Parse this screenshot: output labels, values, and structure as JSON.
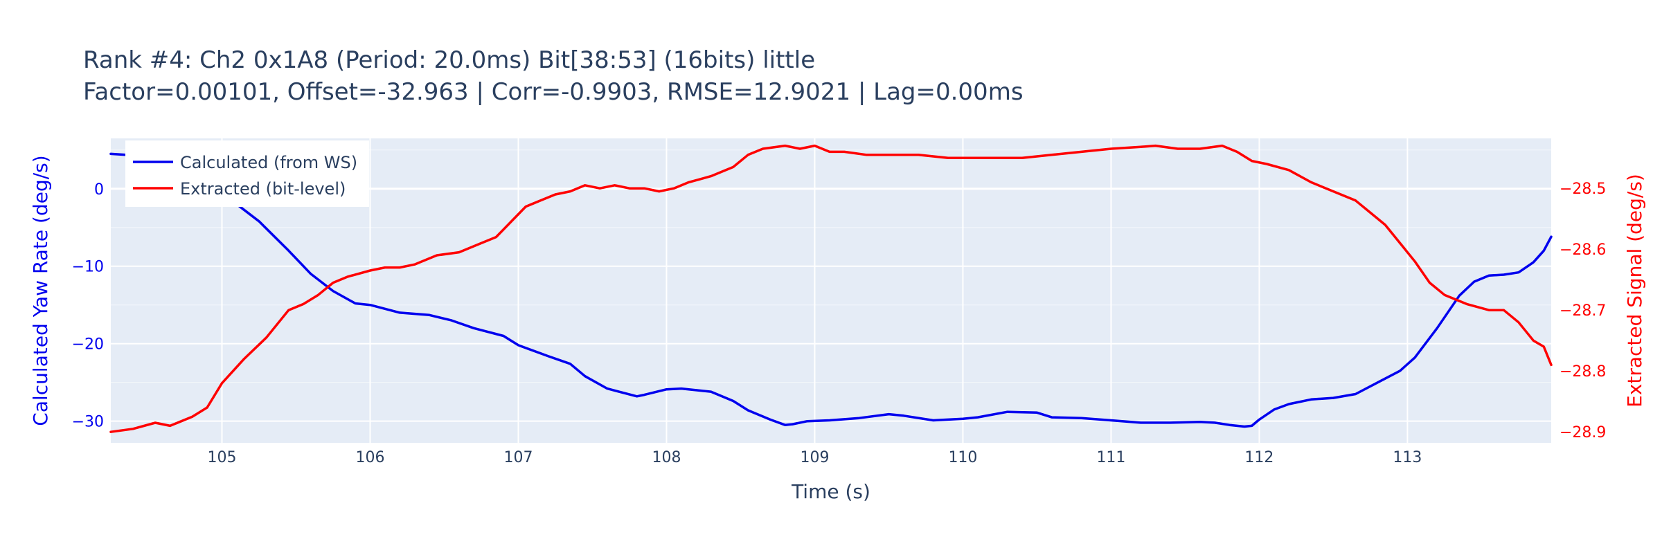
{
  "chart_data": {
    "type": "line",
    "title": "Rank #4: Ch2 0x1A8 (Period: 20.0ms) Bit[38:53] (16bits) little",
    "subtitle": "Factor=0.00101, Offset=-32.963 | Corr=-0.9903, RMSE=12.9021 | Lag=0.00ms",
    "xlabel": "Time (s)",
    "ylabel_left": "Calculated Yaw Rate (deg/s)",
    "ylabel_right": "Extracted Signal (deg/s)",
    "xlim": [
      104.25,
      113.97
    ],
    "ylim_left": [
      -32.8,
      6.5
    ],
    "ylim_right": [
      -28.918,
      -28.418
    ],
    "x_ticks": [
      105,
      106,
      107,
      108,
      109,
      110,
      111,
      112,
      113
    ],
    "x_tick_labels": [
      "105",
      "106",
      "107",
      "108",
      "109",
      "110",
      "111",
      "112",
      "113"
    ],
    "y_left_ticks": [
      0,
      -10,
      -20,
      -30
    ],
    "y_left_tick_labels": [
      "0",
      "−10",
      "−20",
      "−30"
    ],
    "y_right_ticks": [
      -28.5,
      -28.6,
      -28.7,
      -28.8,
      -28.9
    ],
    "y_right_tick_labels": [
      "−28.5",
      "−28.6",
      "−28.7",
      "−28.8",
      "−28.9"
    ],
    "grid": true,
    "legend_position": "top-left",
    "colors": {
      "calculated": "#0000ee",
      "extracted": "#ff0000",
      "plot_bg": "#e5ecf6",
      "grid": "#ffffff",
      "text": "#2a3f5f"
    },
    "series": [
      {
        "name": "Calculated (from WS)",
        "axis": "left",
        "x": [
          104.25,
          104.5,
          104.75,
          104.95,
          105.1,
          105.25,
          105.45,
          105.6,
          105.75,
          105.9,
          106.0,
          106.2,
          106.4,
          106.55,
          106.7,
          106.9,
          107.0,
          107.2,
          107.35,
          107.45,
          107.6,
          107.8,
          107.85,
          108.0,
          108.1,
          108.2,
          108.3,
          108.45,
          108.55,
          108.7,
          108.8,
          108.85,
          108.95,
          109.1,
          109.3,
          109.5,
          109.6,
          109.8,
          110.0,
          110.1,
          110.3,
          110.5,
          110.6,
          110.8,
          111.0,
          111.2,
          111.4,
          111.6,
          111.7,
          111.8,
          111.9,
          111.95,
          112.0,
          112.1,
          112.2,
          112.35,
          112.5,
          112.65,
          112.8,
          112.95,
          113.05,
          113.2,
          113.35,
          113.45,
          113.55,
          113.65,
          113.75,
          113.85,
          113.92,
          113.97
        ],
        "y": [
          4.5,
          4.2,
          3.6,
          1.5,
          -2.0,
          -4.2,
          -8.0,
          -11.0,
          -13.2,
          -14.8,
          -15.0,
          -16.0,
          -16.3,
          -17.0,
          -18.0,
          -19.0,
          -20.2,
          -21.6,
          -22.6,
          -24.2,
          -25.8,
          -26.8,
          -26.6,
          -25.9,
          -25.8,
          -26.0,
          -26.2,
          -27.4,
          -28.6,
          -29.8,
          -30.5,
          -30.4,
          -30.0,
          -29.9,
          -29.6,
          -29.1,
          -29.3,
          -29.9,
          -29.7,
          -29.5,
          -28.8,
          -28.9,
          -29.5,
          -29.6,
          -29.9,
          -30.2,
          -30.2,
          -30.1,
          -30.2,
          -30.5,
          -30.7,
          -30.6,
          -29.8,
          -28.5,
          -27.8,
          -27.2,
          -27.0,
          -26.5,
          -25.0,
          -23.5,
          -21.8,
          -18.0,
          -13.8,
          -12.0,
          -11.2,
          -11.1,
          -10.8,
          -9.5,
          -8.0,
          -6.2
        ]
      },
      {
        "name": "Extracted (bit-level)",
        "axis": "right",
        "x": [
          104.25,
          104.4,
          104.55,
          104.65,
          104.8,
          104.9,
          105.0,
          105.15,
          105.3,
          105.45,
          105.55,
          105.65,
          105.75,
          105.85,
          106.0,
          106.1,
          106.2,
          106.3,
          106.45,
          106.6,
          106.75,
          106.85,
          106.95,
          107.05,
          107.15,
          107.25,
          107.35,
          107.45,
          107.55,
          107.65,
          107.75,
          107.85,
          107.95,
          108.05,
          108.15,
          108.3,
          108.45,
          108.55,
          108.65,
          108.8,
          108.9,
          109.0,
          109.1,
          109.2,
          109.35,
          109.5,
          109.7,
          109.9,
          110.0,
          110.2,
          110.4,
          110.6,
          110.8,
          111.0,
          111.2,
          111.3,
          111.45,
          111.6,
          111.75,
          111.85,
          111.95,
          112.05,
          112.2,
          112.35,
          112.5,
          112.65,
          112.75,
          112.85,
          112.95,
          113.05,
          113.15,
          113.25,
          113.4,
          113.55,
          113.65,
          113.75,
          113.85,
          113.92,
          113.97
        ],
        "y": [
          -28.9,
          -28.895,
          -28.885,
          -28.89,
          -28.875,
          -28.86,
          -28.82,
          -28.78,
          -28.745,
          -28.7,
          -28.69,
          -28.675,
          -28.655,
          -28.645,
          -28.635,
          -28.63,
          -28.63,
          -28.625,
          -28.61,
          -28.605,
          -28.59,
          -28.58,
          -28.555,
          -28.53,
          -28.52,
          -28.51,
          -28.505,
          -28.495,
          -28.5,
          -28.495,
          -28.5,
          -28.5,
          -28.505,
          -28.5,
          -28.49,
          -28.48,
          -28.465,
          -28.445,
          -28.435,
          -28.43,
          -28.435,
          -28.43,
          -28.44,
          -28.44,
          -28.445,
          -28.445,
          -28.445,
          -28.45,
          -28.45,
          -28.45,
          -28.45,
          -28.445,
          -28.44,
          -28.435,
          -28.432,
          -28.43,
          -28.435,
          -28.435,
          -28.43,
          -28.44,
          -28.455,
          -28.46,
          -28.47,
          -28.49,
          -28.505,
          -28.52,
          -28.54,
          -28.56,
          -28.59,
          -28.62,
          -28.655,
          -28.675,
          -28.69,
          -28.7,
          -28.7,
          -28.72,
          -28.75,
          -28.76,
          -28.79
        ]
      }
    ]
  }
}
